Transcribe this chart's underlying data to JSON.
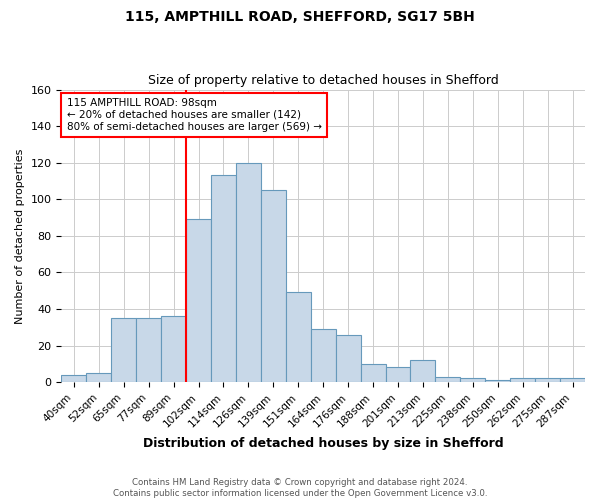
{
  "title1": "115, AMPTHILL ROAD, SHEFFORD, SG17 5BH",
  "title2": "Size of property relative to detached houses in Shefford",
  "xlabel": "Distribution of detached houses by size in Shefford",
  "ylabel": "Number of detached properties",
  "footer1": "Contains HM Land Registry data © Crown copyright and database right 2024.",
  "footer2": "Contains public sector information licensed under the Open Government Licence v3.0.",
  "bin_labels": [
    "40sqm",
    "52sqm",
    "65sqm",
    "77sqm",
    "89sqm",
    "102sqm",
    "114sqm",
    "126sqm",
    "139sqm",
    "151sqm",
    "164sqm",
    "176sqm",
    "188sqm",
    "201sqm",
    "213sqm",
    "225sqm",
    "238sqm",
    "250sqm",
    "262sqm",
    "275sqm",
    "287sqm"
  ],
  "bar_values": [
    4,
    5,
    35,
    35,
    36,
    89,
    113,
    120,
    105,
    49,
    29,
    26,
    10,
    8,
    12,
    3,
    2,
    1,
    2,
    2,
    2
  ],
  "bar_color": "#c8d8e8",
  "bar_edgecolor": "#6699bb",
  "red_line_x": 4.5,
  "annotation_line1": "115 AMPTHILL ROAD: 98sqm",
  "annotation_line2": "← 20% of detached houses are smaller (142)",
  "annotation_line3": "80% of semi-detached houses are larger (569) →",
  "ylim": [
    0,
    160
  ],
  "yticks": [
    0,
    20,
    40,
    60,
    80,
    100,
    120,
    140,
    160
  ],
  "background_color": "#ffffff",
  "grid_color": "#cccccc"
}
